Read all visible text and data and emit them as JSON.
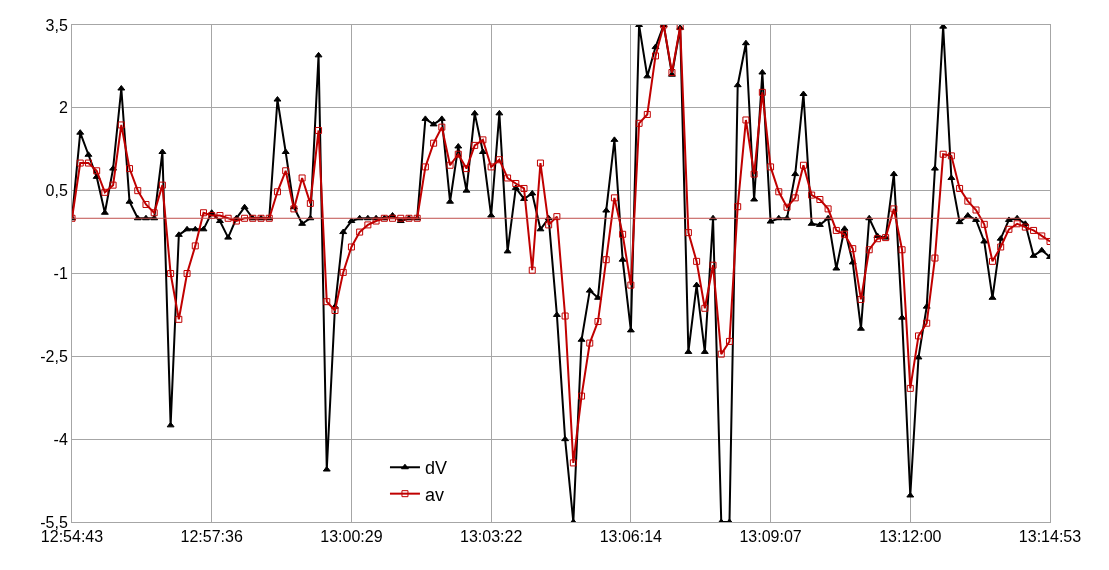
{
  "chart_data": {
    "type": "line",
    "categories": [
      "12:54:43",
      null,
      null,
      null,
      null,
      null,
      null,
      null,
      null,
      null,
      null,
      null,
      null,
      null,
      null,
      null,
      null,
      "12:57:36",
      null,
      null,
      null,
      null,
      null,
      null,
      null,
      null,
      null,
      null,
      null,
      null,
      null,
      null,
      null,
      null,
      "13:00:29",
      null,
      null,
      null,
      null,
      null,
      null,
      null,
      null,
      null,
      null,
      null,
      null,
      null,
      null,
      null,
      null,
      "13:03:22",
      null,
      null,
      null,
      null,
      null,
      null,
      null,
      null,
      null,
      null,
      null,
      null,
      null,
      null,
      null,
      null,
      "13:06:14",
      null,
      null,
      null,
      null,
      null,
      null,
      null,
      null,
      null,
      null,
      null,
      null,
      null,
      null,
      null,
      null,
      "13:09:07",
      null,
      null,
      null,
      null,
      null,
      null,
      null,
      null,
      null,
      null,
      null,
      null,
      null,
      null,
      null,
      null,
      "13:12:00",
      null,
      null,
      null,
      null,
      null,
      null,
      null,
      null,
      null,
      null,
      null,
      null,
      null,
      null,
      null,
      null,
      "13:14:53"
    ],
    "series": [
      {
        "name": "dV",
        "color": "#000000",
        "marker": "triangle",
        "values": [
          0,
          1.55,
          1.15,
          0.75,
          0.1,
          0.9,
          2.35,
          0.3,
          0,
          0,
          0,
          1.2,
          -3.75,
          -0.3,
          -0.2,
          -0.2,
          -0.2,
          0.1,
          -0.05,
          -0.35,
          0,
          0.2,
          0,
          0,
          0,
          2.15,
          1.2,
          0.2,
          -0.1,
          0,
          2.95,
          -4.55,
          -1.6,
          -0.25,
          -0.05,
          0,
          0,
          0,
          0,
          0.05,
          -0.05,
          0,
          0,
          1.8,
          1.7,
          1.8,
          0.3,
          1.3,
          0.5,
          1.9,
          1.2,
          0.05,
          1.9,
          -0.6,
          0.55,
          0.35,
          0.45,
          -0.2,
          0,
          -1.75,
          -4.0,
          -5.5,
          -2.2,
          -1.31,
          -1.44,
          0.14,
          1.42,
          -0.75,
          -2.03,
          3.5,
          2.57,
          3.1,
          3.5,
          2.6,
          3.45,
          -2.42,
          -1.21,
          -2.42,
          0,
          -5.5,
          -5.5,
          2.41,
          3.17,
          0.34,
          2.64,
          -0.06,
          0,
          0,
          0.8,
          2.25,
          -0.1,
          -0.12,
          0,
          -0.91,
          -0.19,
          -0.8,
          -2.0,
          0,
          -0.32,
          -0.35,
          0.8,
          -1.8,
          -5.02,
          -2.52,
          -1.6,
          0.9,
          3.47,
          0.73,
          -0.07,
          0.05,
          -0.03,
          -0.42,
          -1.44,
          -0.37,
          -0.03,
          0,
          -0.1,
          -0.68,
          -0.58,
          -0.7
        ]
      },
      {
        "name": "av",
        "color": "#c00000",
        "marker": "square",
        "values": [
          0,
          1.0,
          1.0,
          0.86,
          0.47,
          0.6,
          1.69,
          0.9,
          0.5,
          0.25,
          0.1,
          0.6,
          -1.0,
          -1.83,
          -1.0,
          -0.5,
          0.1,
          0.05,
          0.05,
          0,
          -0.05,
          0,
          0,
          0,
          0,
          0.48,
          0.86,
          0.17,
          0.73,
          0.27,
          1.59,
          -1.51,
          -1.67,
          -0.98,
          -0.52,
          -0.25,
          -0.12,
          -0.05,
          0,
          0,
          0,
          0,
          0,
          0.93,
          1.36,
          1.65,
          0.96,
          1.16,
          0.9,
          1.32,
          1.42,
          0.93,
          1.06,
          0.73,
          0.63,
          0.54,
          -0.94,
          1.0,
          -0.12,
          0.03,
          -1.77,
          -4.43,
          -3.22,
          -2.26,
          -1.87,
          -0.75,
          0.37,
          -0.29,
          -1.21,
          1.72,
          1.88,
          2.94,
          3.5,
          2.64,
          3.47,
          -0.26,
          -0.78,
          -1.63,
          -0.85,
          -2.46,
          -2.23,
          0.21,
          1.78,
          0.8,
          2.28,
          0.93,
          0.48,
          0.2,
          0.37,
          0.96,
          0.42,
          0.34,
          0.17,
          -0.22,
          -0.29,
          -0.55,
          -1.47,
          -0.57,
          -0.37,
          -0.35,
          0.17,
          -0.57,
          -3.08,
          -2.13,
          -1.9,
          -0.72,
          1.16,
          1.13,
          0.54,
          0.31,
          0.15,
          -0.11,
          -0.78,
          -0.52,
          -0.2,
          -0.1,
          -0.16,
          -0.22,
          -0.32,
          -0.42
        ]
      }
    ],
    "ylim": [
      -5.5,
      3.5
    ],
    "yticks": [
      {
        "value": 3.5,
        "label": "3,5"
      },
      2,
      {
        "value": 0.5,
        "label": "0,5"
      },
      -1,
      {
        "value": -2.5,
        "label": "-2,5"
      },
      -4,
      {
        "value": -5.5,
        "label": "-5,5"
      }
    ],
    "ref_lines": [
      {
        "axis": "y",
        "value": 0,
        "color": "#c0504d"
      }
    ],
    "grid": true,
    "legend": "bottom",
    "line_style": "solid"
  }
}
